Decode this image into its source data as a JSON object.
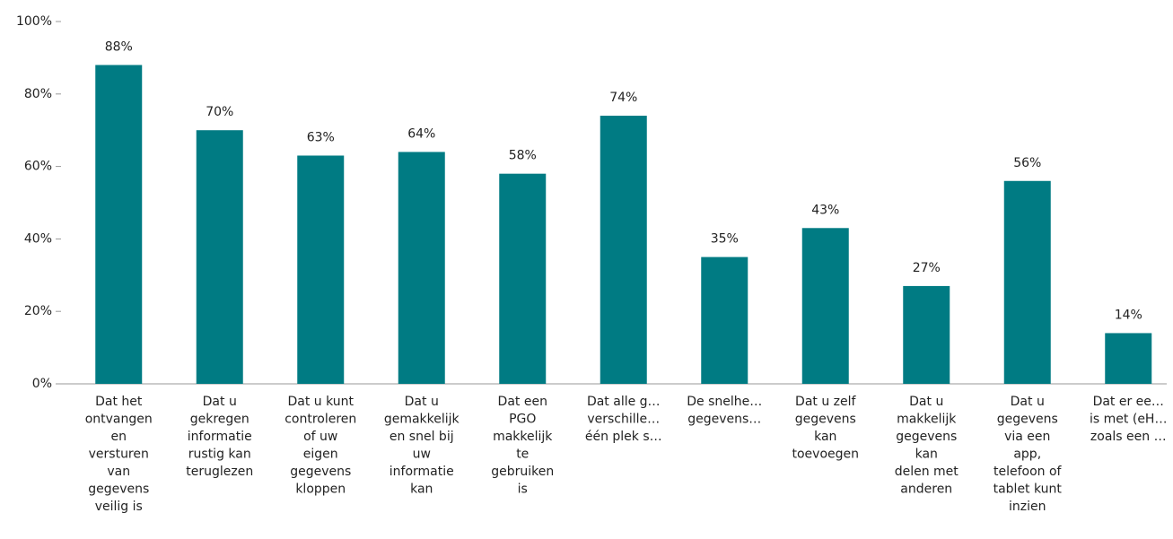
{
  "chart_data": {
    "type": "bar",
    "categories": [
      [
        "Dat het",
        "ontvangen",
        "en",
        "versturen",
        "van",
        "gegevens",
        "veilig is"
      ],
      [
        "Dat u",
        "gekregen",
        "informatie",
        "rustig kan",
        "teruglezen"
      ],
      [
        "Dat u kunt",
        "controleren",
        "of uw",
        "eigen",
        "gegevens",
        "kloppen"
      ],
      [
        "Dat u",
        "gemakkelijk",
        "en snel bij",
        "uw",
        "informatie",
        "kan"
      ],
      [
        "Dat een",
        "PGO",
        "makkelijk",
        "te",
        "gebruiken",
        "is"
      ],
      [
        "Dat alle g…",
        "verschille…",
        "één plek s…"
      ],
      [
        "De snelhe…",
        "gegevens…"
      ],
      [
        "Dat u zelf",
        "gegevens",
        "kan",
        "toevoegen"
      ],
      [
        "Dat u",
        "makkelijk",
        "gegevens",
        "kan",
        "delen met",
        "anderen"
      ],
      [
        "Dat u",
        "gegevens",
        "via een",
        "app,",
        "telefoon of",
        "tablet kunt",
        "inzien"
      ],
      [
        "Dat er ee…",
        "is met (eH…",
        "zoals een …"
      ]
    ],
    "values": [
      88,
      70,
      63,
      64,
      58,
      74,
      35,
      43,
      27,
      56,
      14
    ],
    "value_labels": [
      "88%",
      "70%",
      "63%",
      "64%",
      "58%",
      "74%",
      "35%",
      "43%",
      "27%",
      "56%",
      "14%"
    ],
    "color": "#007b83",
    "ylim": [
      0,
      100
    ],
    "yticks": [
      {
        "value": 0,
        "label": "0%"
      },
      {
        "value": 20,
        "label": "20%"
      },
      {
        "value": 40,
        "label": "40%"
      },
      {
        "value": 60,
        "label": "60%"
      },
      {
        "value": 80,
        "label": "80%"
      },
      {
        "value": 100,
        "label": "100%"
      }
    ]
  }
}
